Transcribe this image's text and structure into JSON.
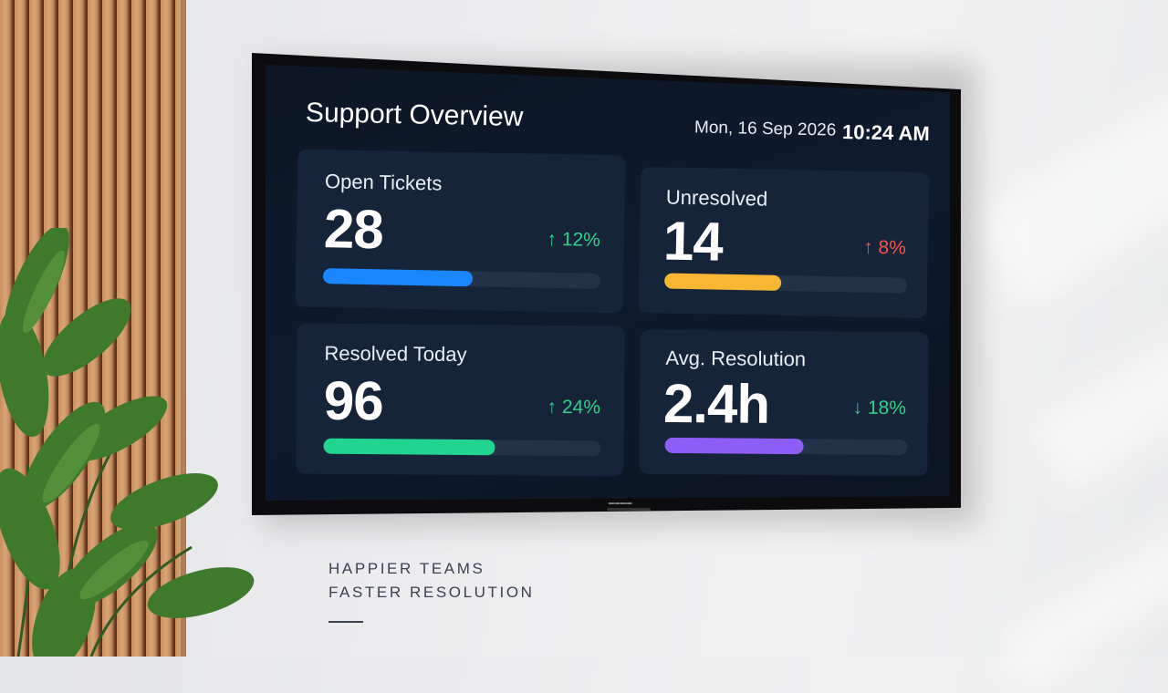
{
  "dashboard": {
    "title": "Support Overview",
    "date": "Mon, 16 Sep 2026",
    "time": "10:24 AM",
    "cards": [
      {
        "label": "Open Tickets",
        "value": "28",
        "delta": "12%",
        "direction": "up",
        "delta_color": "#2fd08a",
        "bar_color": "#1a86ff",
        "progress": 0.54
      },
      {
        "label": "Unresolved",
        "value": "14",
        "delta": "8%",
        "direction": "up",
        "delta_color": "#f0554b",
        "bar_color": "#f7b733",
        "progress": 0.48
      },
      {
        "label": "Resolved Today",
        "value": "96",
        "delta": "24%",
        "direction": "up",
        "delta_color": "#2fd08a",
        "bar_color": "#21d48f",
        "progress": 0.62
      },
      {
        "label": "Avg. Resolution",
        "value": "2.4h",
        "delta": "18%",
        "direction": "down",
        "delta_color": "#2fd08a",
        "bar_color": "#8e5cf6",
        "progress": 0.57
      }
    ]
  },
  "wall_text": {
    "line1": "HAPPIER TEAMS",
    "line2": "FASTER RESOLUTION"
  },
  "colors": {
    "screen_bg": "#0d1829",
    "card_bg": "#16243a",
    "wall": "#ececee",
    "wood": "#c98e5e"
  }
}
